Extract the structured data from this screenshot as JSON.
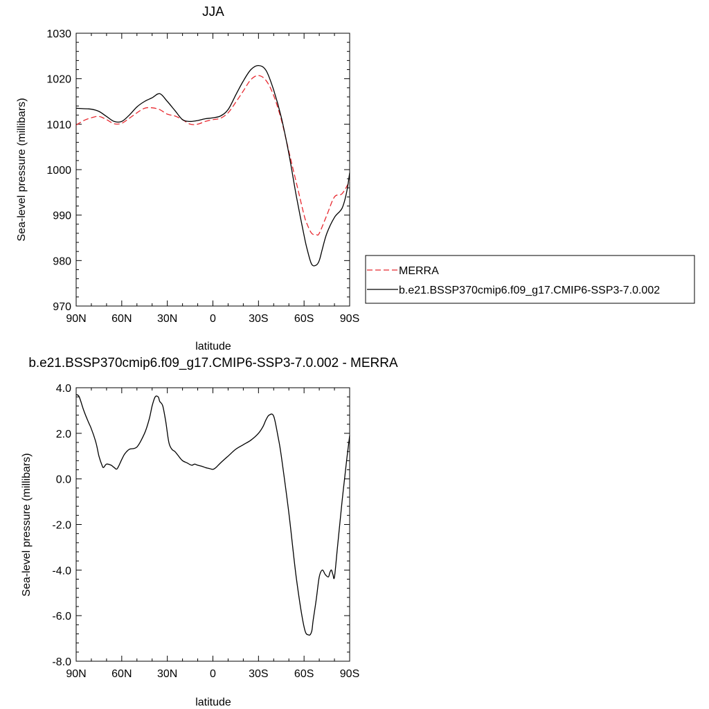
{
  "colors": {
    "merra": "#e8282f",
    "model": "#000000",
    "frame": "#000000"
  },
  "chart_data": [
    {
      "type": "line",
      "title": "JJA",
      "xlabel": "latitude",
      "ylabel": "Sea-level pressure (millibars)",
      "xlim": [
        90,
        -90
      ],
      "ylim": [
        970,
        1030
      ],
      "x_note_direction": "north-to-south",
      "xticks": [
        90,
        60,
        30,
        0,
        -30,
        -60,
        -90
      ],
      "xtick_labels": [
        "90N",
        "60N",
        "30N",
        "0",
        "30S",
        "60S",
        "90S"
      ],
      "yticks": [
        970,
        980,
        990,
        1000,
        1010,
        1020,
        1030
      ],
      "ytick_labels": [
        "970",
        "980",
        "990",
        "1000",
        "1010",
        "1020",
        "1030"
      ],
      "legend_position": "right",
      "series": [
        {
          "name": "MERRA",
          "style": "dashed",
          "x": [
            90,
            85,
            80,
            75,
            70,
            65,
            60,
            55,
            50,
            45,
            40,
            35,
            30,
            25,
            20,
            15,
            10,
            5,
            0,
            -5,
            -10,
            -15,
            -20,
            -25,
            -30,
            -35,
            -40,
            -45,
            -50,
            -55,
            -60,
            -62,
            -65,
            -68,
            -70,
            -75,
            -80,
            -85,
            -90
          ],
          "y": [
            1009.8,
            1010.8,
            1011.4,
            1011.7,
            1011.0,
            1010.1,
            1010.2,
            1011.3,
            1012.5,
            1013.5,
            1013.6,
            1013.2,
            1012.2,
            1011.8,
            1011.0,
            1010.0,
            1010.0,
            1010.6,
            1011.0,
            1011.3,
            1012.5,
            1014.8,
            1017.3,
            1019.8,
            1020.7,
            1019.6,
            1016.3,
            1011.0,
            1004.0,
            997.0,
            990.0,
            988.0,
            986.0,
            985.7,
            986.0,
            990.0,
            994.0,
            994.7,
            997.5
          ]
        },
        {
          "name": "b.e21.BSSP370cmip6.f09_g17.CMIP6-SSP3-7.0.002",
          "style": "solid",
          "x": [
            90,
            85,
            80,
            75,
            70,
            65,
            60,
            55,
            50,
            45,
            40,
            35,
            30,
            25,
            20,
            15,
            10,
            5,
            0,
            -5,
            -10,
            -15,
            -20,
            -25,
            -30,
            -35,
            -40,
            -45,
            -50,
            -55,
            -60,
            -62,
            -65,
            -68,
            -70,
            -72,
            -75,
            -80,
            -85,
            -88,
            -90
          ],
          "y": [
            1013.5,
            1013.4,
            1013.3,
            1012.8,
            1011.7,
            1010.6,
            1010.6,
            1012.0,
            1013.8,
            1015.0,
            1015.8,
            1016.7,
            1015.0,
            1013.0,
            1011.0,
            1010.6,
            1010.8,
            1011.2,
            1011.4,
            1011.8,
            1013.2,
            1016.4,
            1019.5,
            1022.0,
            1022.9,
            1021.8,
            1017.5,
            1011.5,
            1003.5,
            994.0,
            985.5,
            982.5,
            979.2,
            979.0,
            980.0,
            982.5,
            986.0,
            989.5,
            991.5,
            995.0,
            999.3
          ]
        }
      ]
    },
    {
      "type": "line",
      "title": "b.e21.BSSP370cmip6.f09_g17.CMIP6-SSP3-7.0.002 - MERRA",
      "xlabel": "latitude",
      "ylabel": "Sea-level pressure (millibars)",
      "xlim": [
        90,
        -90
      ],
      "ylim": [
        -8,
        4
      ],
      "xticks": [
        90,
        60,
        30,
        0,
        -30,
        -60,
        -90
      ],
      "xtick_labels": [
        "90N",
        "60N",
        "30N",
        "0",
        "30S",
        "60S",
        "90S"
      ],
      "yticks": [
        -8,
        -6,
        -4,
        -2,
        0,
        2,
        4
      ],
      "ytick_labels": [
        "-8.0",
        "-6.0",
        "-4.0",
        "-2.0",
        "0.0",
        "2.0",
        "4.0"
      ],
      "series": [
        {
          "style": "solid",
          "x": [
            90,
            88,
            85,
            82,
            80,
            77,
            75,
            73,
            72,
            70,
            67,
            65,
            63,
            60,
            58,
            55,
            50,
            45,
            42,
            40,
            38,
            36,
            35,
            33,
            31,
            29,
            27,
            25,
            22,
            20,
            17,
            14,
            12,
            10,
            7,
            5,
            2,
            0,
            -2,
            -5,
            -10,
            -15,
            -20,
            -25,
            -30,
            -33,
            -35,
            -37,
            -40,
            -43,
            -45,
            -50,
            -55,
            -60,
            -63,
            -65,
            -66,
            -68,
            -70,
            -72,
            -74,
            -76,
            -77,
            -78,
            -79,
            -80,
            -82,
            -85,
            -88,
            -90
          ],
          "y": [
            3.7,
            3.6,
            3.0,
            2.5,
            2.2,
            1.6,
            1.0,
            0.6,
            0.5,
            0.65,
            0.6,
            0.5,
            0.45,
            0.85,
            1.1,
            1.3,
            1.4,
            2.0,
            2.6,
            3.2,
            3.6,
            3.6,
            3.4,
            3.2,
            2.5,
            1.6,
            1.3,
            1.2,
            0.95,
            0.8,
            0.7,
            0.6,
            0.65,
            0.6,
            0.55,
            0.5,
            0.45,
            0.42,
            0.5,
            0.7,
            1.0,
            1.3,
            1.5,
            1.7,
            2.0,
            2.3,
            2.6,
            2.8,
            2.75,
            1.8,
            1.0,
            -1.5,
            -4.4,
            -6.5,
            -6.85,
            -6.7,
            -6.2,
            -5.3,
            -4.3,
            -4.0,
            -4.2,
            -4.3,
            -4.1,
            -4.0,
            -4.2,
            -4.3,
            -3.0,
            -1.0,
            0.8,
            1.9
          ]
        }
      ]
    }
  ]
}
